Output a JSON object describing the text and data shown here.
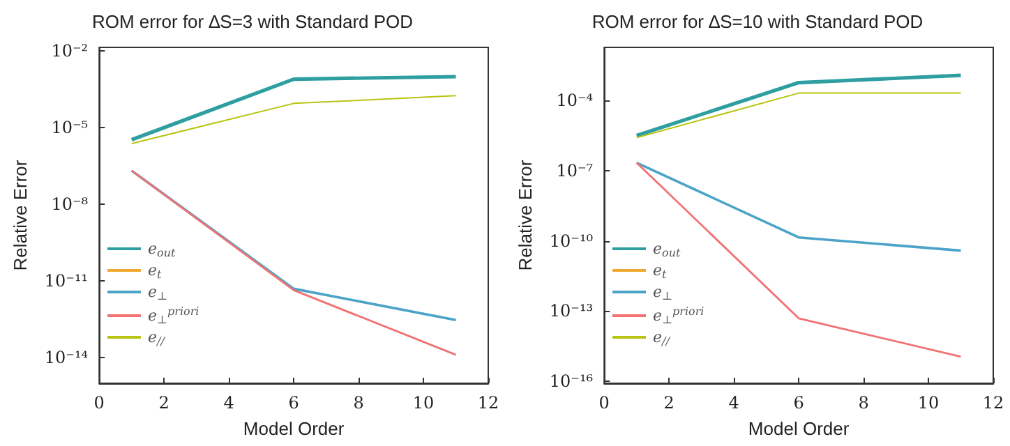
{
  "chart_data": [
    {
      "type": "line",
      "title": "ROM error for ∆S=3 with Standard POD",
      "xlabel": "Model Order",
      "ylabel": "Relative Error",
      "log": "y",
      "grid": false,
      "legend": "left",
      "marker": "none",
      "line_style": "solid",
      "xlim": [
        0,
        12
      ],
      "xticks": [
        0,
        2,
        4,
        6,
        8,
        10,
        12
      ],
      "ylim": [
        1e-15,
        0.014
      ],
      "yticks": [
        {
          "value": 1e-14,
          "label": "10⁻¹⁴"
        },
        {
          "value": 1e-11,
          "label": "10⁻¹¹"
        },
        {
          "value": 1e-08,
          "label": "10⁻⁸"
        },
        {
          "value": 1e-05,
          "label": "10⁻⁵"
        },
        {
          "value": 0.01,
          "label": "10⁻²"
        }
      ],
      "x": [
        1,
        6,
        11
      ],
      "series": [
        {
          "name": "e$_{out}$",
          "color": "#2f9ea0",
          "values": [
            3.4e-06,
            0.0008,
            0.001
          ]
        },
        {
          "name": "e$_{t}$",
          "color": "#f0a830",
          "values": [
            null,
            null,
            null
          ]
        },
        {
          "name": "e$_{⊥}$",
          "color": "#4ba3c7",
          "values": [
            2.1e-07,
            5e-12,
            3e-13
          ]
        },
        {
          "name": "e$_{⊥}$$^{priori}$",
          "color": "#f07272",
          "values": [
            2.1e-07,
            4.4e-12,
            1.3e-14
          ]
        },
        {
          "name": "e$_{//}$",
          "color": "#b8c412",
          "values": [
            2.4e-06,
            9e-05,
            0.00018
          ]
        }
      ]
    },
    {
      "type": "line",
      "title": "ROM error for ∆S=10 with Standard POD",
      "xlabel": "Model Order",
      "ylabel": "Relative Error",
      "log": "y",
      "grid": false,
      "legend": "left",
      "marker": "none",
      "line_style": "solid",
      "xlim": [
        0,
        12
      ],
      "xticks": [
        0,
        2,
        4,
        6,
        8,
        10,
        12
      ],
      "ylim": [
        8e-17,
        0.019
      ],
      "yticks": [
        {
          "value": 1e-16,
          "label": "10⁻¹⁶"
        },
        {
          "value": 1e-13,
          "label": "10⁻¹³"
        },
        {
          "value": 1e-10,
          "label": "10⁻¹⁰"
        },
        {
          "value": 1e-07,
          "label": "10⁻⁷"
        },
        {
          "value": 0.0001,
          "label": "10⁻⁴"
        }
      ],
      "x": [
        1,
        6,
        11
      ],
      "series": [
        {
          "name": "e$_{out}$",
          "color": "#2f9ea0",
          "values": [
            3.2e-06,
            0.00059,
            0.0012
          ]
        },
        {
          "name": "e$_{t}$",
          "color": "#f0a830",
          "values": [
            null,
            null,
            null
          ]
        },
        {
          "name": "e$_{⊥}$",
          "color": "#4ba3c7",
          "values": [
            2.2e-07,
            1.4e-10,
            3.8e-11
          ]
        },
        {
          "name": "e$_{⊥}$$^{priori}$",
          "color": "#f07272",
          "values": [
            2.2e-07,
            4.8e-14,
            1.1e-15
          ]
        },
        {
          "name": "e$_{//}$",
          "color": "#b8c412",
          "values": [
            2.6e-06,
            0.00021,
            0.00021
          ]
        }
      ]
    }
  ]
}
